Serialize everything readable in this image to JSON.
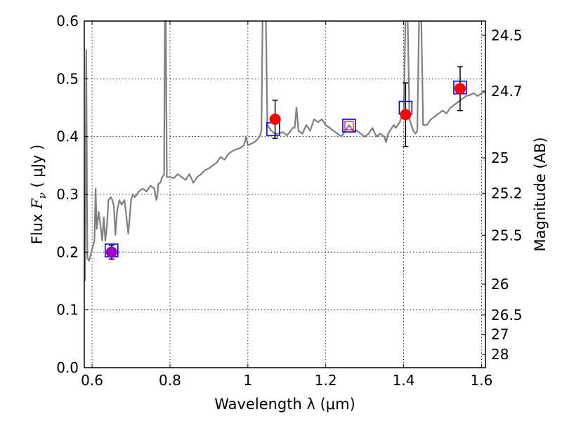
{
  "chart_data": {
    "type": "scatter",
    "xlabel": "Wavelength  λ (μm)",
    "ylabel_parts": {
      "prefix": "Flux  ",
      "symbol_main": "F",
      "symbol_sub": "ν",
      "unit": "  ( μJy )"
    },
    "ylabel2": "Magnitude (AB)",
    "xlim": [
      0.58,
      1.61
    ],
    "ylim": [
      0.0,
      0.6
    ],
    "grid": true,
    "x_ticks": [
      {
        "value": 0.6,
        "label": "0.6"
      },
      {
        "value": 0.8,
        "label": "0.8"
      },
      {
        "value": 1.0,
        "label": "1"
      },
      {
        "value": 1.2,
        "label": "1.2"
      },
      {
        "value": 1.4,
        "label": "1.4"
      },
      {
        "value": 1.6,
        "label": "1.6"
      }
    ],
    "y_ticks": [
      {
        "value": 0.0,
        "label": "0.0"
      },
      {
        "value": 0.1,
        "label": "0.1"
      },
      {
        "value": 0.2,
        "label": "0.2"
      },
      {
        "value": 0.3,
        "label": "0.3"
      },
      {
        "value": 0.4,
        "label": "0.4"
      },
      {
        "value": 0.5,
        "label": "0.5"
      },
      {
        "value": 0.6,
        "label": "0.6"
      }
    ],
    "mag_ticks": [
      {
        "flux": 0.5754,
        "label": "24.5"
      },
      {
        "flux": 0.4786,
        "label": "24.7"
      },
      {
        "flux": 0.3631,
        "label": "25"
      },
      {
        "flux": 0.302,
        "label": "25.2"
      },
      {
        "flux": 0.2291,
        "label": "25.5"
      },
      {
        "flux": 0.1445,
        "label": "26"
      },
      {
        "flux": 0.0912,
        "label": "26.5"
      },
      {
        "flux": 0.0575,
        "label": "27"
      },
      {
        "flux": 0.0229,
        "label": "28"
      }
    ],
    "spectrum": {
      "color": "#808080",
      "points": [
        [
          0.582,
          0.15
        ],
        [
          0.585,
          0.55
        ],
        [
          0.588,
          0.19
        ],
        [
          0.592,
          0.185
        ],
        [
          0.598,
          0.2
        ],
        [
          0.602,
          0.21
        ],
        [
          0.606,
          0.22
        ],
        [
          0.609,
          0.31
        ],
        [
          0.612,
          0.24
        ],
        [
          0.617,
          0.27
        ],
        [
          0.621,
          0.25
        ],
        [
          0.626,
          0.22
        ],
        [
          0.63,
          0.26
        ],
        [
          0.634,
          0.22
        ],
        [
          0.638,
          0.245
        ],
        [
          0.642,
          0.29
        ],
        [
          0.648,
          0.295
        ],
        [
          0.652,
          0.29
        ],
        [
          0.656,
          0.28
        ],
        [
          0.66,
          0.23
        ],
        [
          0.664,
          0.27
        ],
        [
          0.67,
          0.29
        ],
        [
          0.676,
          0.282
        ],
        [
          0.683,
          0.29
        ],
        [
          0.69,
          0.25
        ],
        [
          0.693,
          0.232
        ],
        [
          0.696,
          0.255
        ],
        [
          0.7,
          0.29
        ],
        [
          0.705,
          0.3
        ],
        [
          0.71,
          0.295
        ],
        [
          0.72,
          0.305
        ],
        [
          0.73,
          0.31
        ],
        [
          0.74,
          0.305
        ],
        [
          0.75,
          0.315
        ],
        [
          0.76,
          0.31
        ],
        [
          0.765,
          0.29
        ],
        [
          0.768,
          0.3
        ],
        [
          0.77,
          0.318
        ],
        [
          0.775,
          0.32
        ],
        [
          0.78,
          0.33
        ],
        [
          0.785,
          0.334
        ],
        [
          0.787,
          0.62
        ],
        [
          0.789,
          0.62
        ],
        [
          0.792,
          0.33
        ],
        [
          0.8,
          0.33
        ],
        [
          0.81,
          0.328
        ],
        [
          0.82,
          0.335
        ],
        [
          0.83,
          0.33
        ],
        [
          0.84,
          0.325
        ],
        [
          0.85,
          0.335
        ],
        [
          0.86,
          0.32
        ],
        [
          0.87,
          0.33
        ],
        [
          0.88,
          0.335
        ],
        [
          0.89,
          0.342
        ],
        [
          0.9,
          0.345
        ],
        [
          0.91,
          0.35
        ],
        [
          0.92,
          0.355
        ],
        [
          0.93,
          0.365
        ],
        [
          0.94,
          0.36
        ],
        [
          0.95,
          0.37
        ],
        [
          0.96,
          0.375
        ],
        [
          0.97,
          0.378
        ],
        [
          0.98,
          0.38
        ],
        [
          0.99,
          0.385
        ],
        [
          0.995,
          0.4
        ],
        [
          1.0,
          0.385
        ],
        [
          1.01,
          0.388
        ],
        [
          1.02,
          0.392
        ],
        [
          1.03,
          0.4
        ],
        [
          1.035,
          0.41
        ],
        [
          1.038,
          0.62
        ],
        [
          1.046,
          0.62
        ],
        [
          1.05,
          0.42
        ],
        [
          1.06,
          0.41
        ],
        [
          1.07,
          0.405
        ],
        [
          1.08,
          0.405
        ],
        [
          1.09,
          0.408
        ],
        [
          1.1,
          0.402
        ],
        [
          1.11,
          0.41
        ],
        [
          1.115,
          0.415
        ],
        [
          1.12,
          0.415
        ],
        [
          1.125,
          0.45
        ],
        [
          1.13,
          0.41
        ],
        [
          1.14,
          0.405
        ],
        [
          1.15,
          0.42
        ],
        [
          1.16,
          0.41
        ],
        [
          1.17,
          0.43
        ],
        [
          1.18,
          0.425
        ],
        [
          1.19,
          0.43
        ],
        [
          1.2,
          0.42
        ],
        [
          1.21,
          0.415
        ],
        [
          1.22,
          0.41
        ],
        [
          1.23,
          0.405
        ],
        [
          1.24,
          0.4
        ],
        [
          1.25,
          0.41
        ],
        [
          1.26,
          0.42
        ],
        [
          1.27,
          0.41
        ],
        [
          1.28,
          0.41
        ],
        [
          1.29,
          0.405
        ],
        [
          1.3,
          0.4
        ],
        [
          1.31,
          0.405
        ],
        [
          1.32,
          0.415
        ],
        [
          1.33,
          0.4
        ],
        [
          1.34,
          0.405
        ],
        [
          1.35,
          0.4
        ],
        [
          1.355,
          0.39
        ],
        [
          1.36,
          0.405
        ],
        [
          1.37,
          0.415
        ],
        [
          1.375,
          0.42
        ],
        [
          1.38,
          0.415
        ],
        [
          1.39,
          0.425
        ],
        [
          1.395,
          0.435
        ],
        [
          1.4,
          0.43
        ],
        [
          1.405,
          0.62
        ],
        [
          1.41,
          0.62
        ],
        [
          1.415,
          0.43
        ],
        [
          1.42,
          0.42
        ],
        [
          1.425,
          0.41
        ],
        [
          1.43,
          0.405
        ],
        [
          1.435,
          0.41
        ],
        [
          1.44,
          0.62
        ],
        [
          1.445,
          0.62
        ],
        [
          1.45,
          0.42
        ],
        [
          1.46,
          0.42
        ],
        [
          1.47,
          0.43
        ],
        [
          1.48,
          0.435
        ],
        [
          1.49,
          0.44
        ],
        [
          1.5,
          0.445
        ],
        [
          1.51,
          0.44
        ],
        [
          1.52,
          0.45
        ],
        [
          1.53,
          0.455
        ],
        [
          1.54,
          0.46
        ],
        [
          1.55,
          0.465
        ],
        [
          1.56,
          0.47
        ],
        [
          1.57,
          0.472
        ],
        [
          1.58,
          0.475
        ],
        [
          1.59,
          0.47
        ],
        [
          1.6,
          0.475
        ],
        [
          1.61,
          0.478
        ]
      ]
    },
    "squares": [
      {
        "x": 0.65,
        "y": 0.203,
        "stroke": "#0000ff",
        "inner": null
      },
      {
        "x": 1.065,
        "y": 0.413,
        "stroke": "#0000ff",
        "inner": null
      },
      {
        "x": 1.26,
        "y": 0.419,
        "stroke": "#0000ff",
        "inner": "#ff0000"
      },
      {
        "x": 1.405,
        "y": 0.45,
        "stroke": "#0000ff",
        "inner": null
      },
      {
        "x": 1.545,
        "y": 0.485,
        "stroke": "#0000ff",
        "inner": null
      }
    ],
    "points": [
      {
        "x": 0.65,
        "y": 0.2,
        "yerr": 0.012,
        "color": "#9900cc"
      },
      {
        "x": 1.07,
        "y": 0.43,
        "yerr": 0.033,
        "color": "#ff0000"
      },
      {
        "x": 1.405,
        "y": 0.438,
        "yerr": 0.055,
        "color": "#ff0000"
      },
      {
        "x": 1.545,
        "y": 0.483,
        "yerr": 0.038,
        "color": "#ff0000"
      }
    ]
  }
}
